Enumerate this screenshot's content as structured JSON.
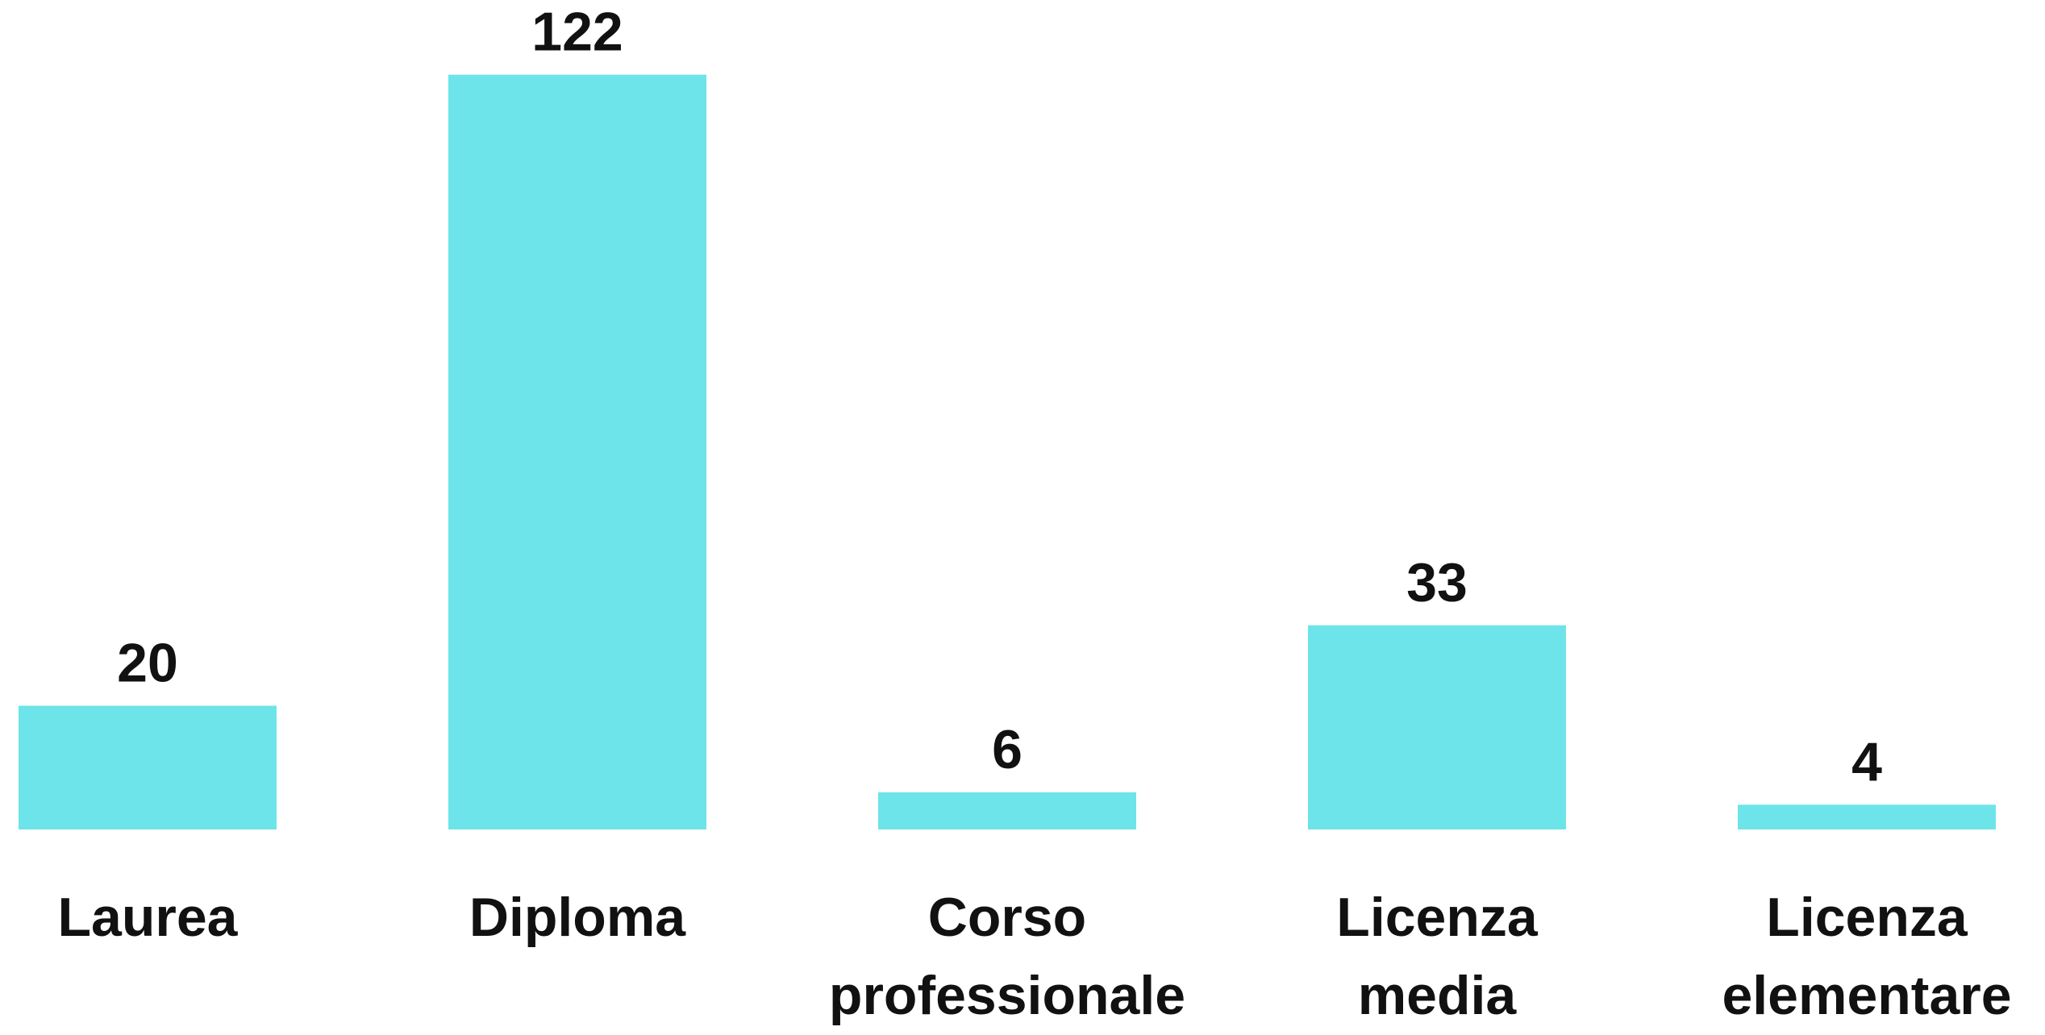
{
  "chart_data": {
    "type": "bar",
    "categories": [
      "Laurea",
      "Diploma",
      "Corso professionale",
      "Licenza media",
      "Licenza elementare"
    ],
    "values": [
      20,
      122,
      6,
      33,
      4
    ],
    "color": "#6de4e9"
  }
}
